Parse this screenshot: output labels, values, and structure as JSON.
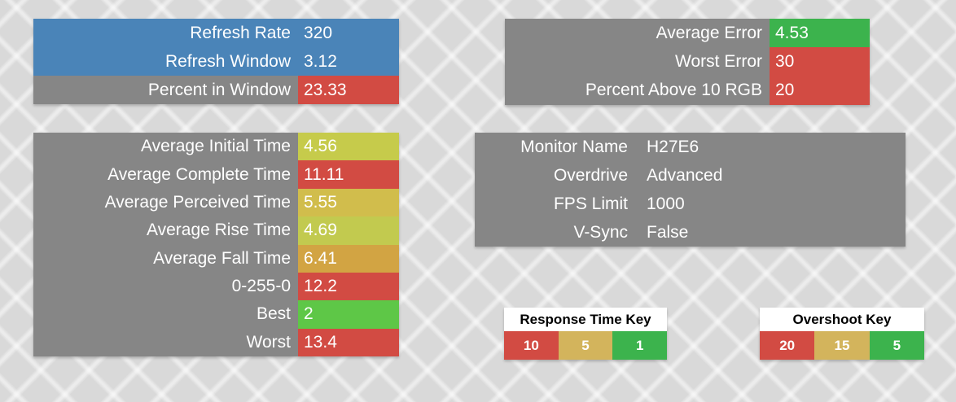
{
  "colors": {
    "background": "#d9d9d9",
    "blue": "#4a84b8",
    "gray": "#868686",
    "red": "#d24b43",
    "green": "#3cb34d",
    "bright_green": "#5ec747",
    "tan": "#d3b45c",
    "yellow_green": "#c6cb4b",
    "gold": "#d1bd4c",
    "lime": "#c2ca4f",
    "orange": "#d2a443"
  },
  "panels": {
    "refresh": {
      "rows": [
        {
          "label": "Refresh Rate",
          "value": "320",
          "label_bg": "#4a84b8",
          "value_bg": "#4a84b8"
        },
        {
          "label": "Refresh Window",
          "value": "3.12",
          "label_bg": "#4a84b8",
          "value_bg": "#4a84b8"
        },
        {
          "label": "Percent in Window",
          "value": "23.33",
          "label_bg": "#868686",
          "value_bg": "#d24b43"
        }
      ]
    },
    "error": {
      "rows": [
        {
          "label": "Average Error",
          "value": "4.53",
          "label_bg": "#868686",
          "value_bg": "#3cb34d"
        },
        {
          "label": "Worst Error",
          "value": "30",
          "label_bg": "#868686",
          "value_bg": "#d24b43"
        },
        {
          "label": "Percent Above 10 RGB",
          "value": "20",
          "label_bg": "#868686",
          "value_bg": "#d24b43"
        }
      ]
    },
    "timing": {
      "rows": [
        {
          "label": "Average Initial Time",
          "value": "4.56",
          "label_bg": "#868686",
          "value_bg": "#c6cb4b"
        },
        {
          "label": "Average Complete Time",
          "value": "11.11",
          "label_bg": "#868686",
          "value_bg": "#d24b43"
        },
        {
          "label": "Average Perceived Time",
          "value": "5.55",
          "label_bg": "#868686",
          "value_bg": "#d1bd4c"
        },
        {
          "label": "Average Rise Time",
          "value": "4.69",
          "label_bg": "#868686",
          "value_bg": "#c2ca4f"
        },
        {
          "label": "Average Fall Time",
          "value": "6.41",
          "label_bg": "#868686",
          "value_bg": "#d2a443"
        },
        {
          "label": "0-255-0",
          "value": "12.2",
          "label_bg": "#868686",
          "value_bg": "#d24b43"
        },
        {
          "label": "Best",
          "value": "2",
          "label_bg": "#868686",
          "value_bg": "#5ec747"
        },
        {
          "label": "Worst",
          "value": "13.4",
          "label_bg": "#868686",
          "value_bg": "#d24b43"
        }
      ]
    },
    "monitor": {
      "rows": [
        {
          "label": "Monitor Name",
          "value": "H27E6"
        },
        {
          "label": "Overdrive",
          "value": "Advanced"
        },
        {
          "label": "FPS Limit",
          "value": "1000"
        },
        {
          "label": "V-Sync",
          "value": "False"
        }
      ]
    }
  },
  "keys": {
    "response_time": {
      "title": "Response Time Key",
      "cells": [
        {
          "label": "10",
          "bg": "#d24b43"
        },
        {
          "label": "5",
          "bg": "#d3b45c"
        },
        {
          "label": "1",
          "bg": "#3cb34d"
        }
      ]
    },
    "overshoot": {
      "title": "Overshoot Key",
      "cells": [
        {
          "label": "20",
          "bg": "#d24b43"
        },
        {
          "label": "15",
          "bg": "#d3b45c"
        },
        {
          "label": "5",
          "bg": "#3cb34d"
        }
      ]
    }
  }
}
